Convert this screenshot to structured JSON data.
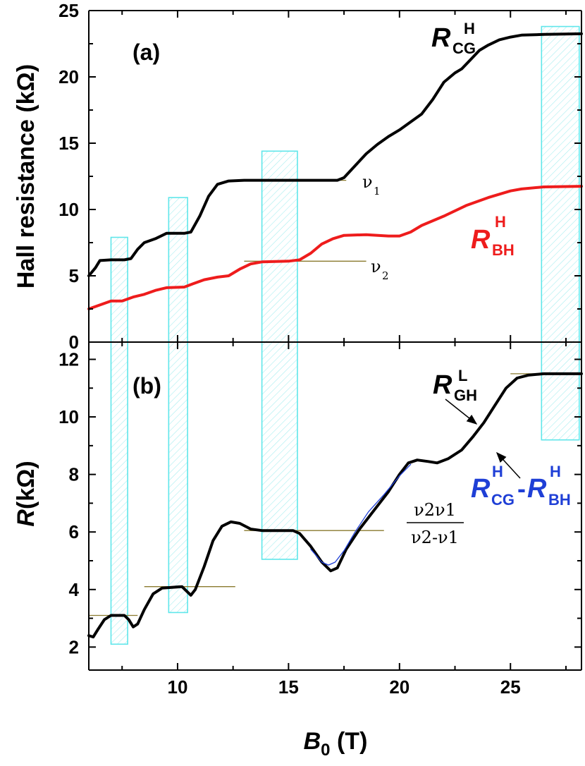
{
  "chart_data": [
    {
      "panel": "(a)",
      "type": "line",
      "ylabel": "Hall resistance (kΩ)",
      "ylim": [
        0,
        25
      ],
      "xlim": [
        6,
        28.2
      ],
      "yticks": [
        0,
        5,
        10,
        15,
        20,
        25
      ],
      "series": [
        {
          "name": "R_CG^H",
          "color": "#000000",
          "points": [
            [
              6.0,
              5.0
            ],
            [
              6.3,
              5.6
            ],
            [
              6.5,
              6.15
            ],
            [
              7.0,
              6.2
            ],
            [
              7.6,
              6.2
            ],
            [
              7.9,
              6.3
            ],
            [
              8.2,
              7.0
            ],
            [
              8.5,
              7.5
            ],
            [
              9.0,
              7.8
            ],
            [
              9.5,
              8.2
            ],
            [
              10.3,
              8.2
            ],
            [
              10.6,
              8.3
            ],
            [
              11.0,
              9.5
            ],
            [
              11.4,
              11.0
            ],
            [
              11.8,
              11.9
            ],
            [
              12.3,
              12.15
            ],
            [
              13.0,
              12.2
            ],
            [
              17.2,
              12.2
            ],
            [
              17.5,
              12.4
            ],
            [
              18.0,
              13.3
            ],
            [
              18.5,
              14.2
            ],
            [
              19.0,
              14.9
            ],
            [
              19.5,
              15.5
            ],
            [
              20.0,
              16.0
            ],
            [
              20.5,
              16.6
            ],
            [
              21.0,
              17.2
            ],
            [
              21.5,
              18.3
            ],
            [
              22.0,
              19.6
            ],
            [
              22.5,
              20.3
            ],
            [
              22.8,
              20.6
            ],
            [
              23.2,
              21.3
            ],
            [
              23.6,
              22.0
            ],
            [
              24.0,
              22.4
            ],
            [
              24.5,
              22.8
            ],
            [
              25.0,
              23.0
            ],
            [
              25.5,
              23.15
            ],
            [
              26.5,
              23.2
            ],
            [
              28.2,
              23.25
            ]
          ]
        },
        {
          "name": "R_BH^H",
          "color": "#ee1c1c",
          "points": [
            [
              6.0,
              2.5
            ],
            [
              6.5,
              2.8
            ],
            [
              7.0,
              3.1
            ],
            [
              7.5,
              3.1
            ],
            [
              8.0,
              3.4
            ],
            [
              8.5,
              3.6
            ],
            [
              9.0,
              3.9
            ],
            [
              9.5,
              4.1
            ],
            [
              10.3,
              4.15
            ],
            [
              10.7,
              4.4
            ],
            [
              11.2,
              4.7
            ],
            [
              11.8,
              4.9
            ],
            [
              12.3,
              5.0
            ],
            [
              12.8,
              5.5
            ],
            [
              13.3,
              5.9
            ],
            [
              13.8,
              6.05
            ],
            [
              15.0,
              6.1
            ],
            [
              15.5,
              6.2
            ],
            [
              16.0,
              6.7
            ],
            [
              16.5,
              7.4
            ],
            [
              17.0,
              7.8
            ],
            [
              17.5,
              8.05
            ],
            [
              18.5,
              8.1
            ],
            [
              19.5,
              8.0
            ],
            [
              20.0,
              8.0
            ],
            [
              20.5,
              8.3
            ],
            [
              21.0,
              8.8
            ],
            [
              22.0,
              9.5
            ],
            [
              23.0,
              10.3
            ],
            [
              24.0,
              10.9
            ],
            [
              25.0,
              11.4
            ],
            [
              25.5,
              11.55
            ],
            [
              26.5,
              11.7
            ],
            [
              28.2,
              11.75
            ]
          ]
        }
      ],
      "labels": [
        {
          "text": "R",
          "sub": "CG",
          "sup": "H",
          "color": "#000000"
        },
        {
          "text": "R",
          "sub": "BH",
          "sup": "H",
          "color": "#ee1c1c"
        },
        {
          "text": "ν",
          "sub": "1"
        },
        {
          "text": "ν",
          "sub": "2"
        }
      ],
      "plateau_lines": [
        {
          "x": [
            13.3,
            17.6
          ],
          "y": 12.2
        },
        {
          "x": [
            13.0,
            18.5
          ],
          "y": 6.1
        }
      ]
    },
    {
      "panel": "(b)",
      "type": "line",
      "ylabel": "R(kΩ)",
      "xlabel": "B0 (T)",
      "ylim": [
        1.2,
        12.6
      ],
      "xlim": [
        6,
        28.2
      ],
      "yticks": [
        2,
        4,
        6,
        8,
        10,
        12
      ],
      "xticks": [
        10,
        15,
        20,
        25
      ],
      "series": [
        {
          "name": "R_GH^L",
          "color": "#000000",
          "points": [
            [
              6.0,
              2.4
            ],
            [
              6.2,
              2.35
            ],
            [
              6.4,
              2.6
            ],
            [
              6.7,
              2.95
            ],
            [
              7.0,
              3.1
            ],
            [
              7.6,
              3.1
            ],
            [
              7.8,
              2.95
            ],
            [
              8.0,
              2.7
            ],
            [
              8.2,
              2.8
            ],
            [
              8.5,
              3.3
            ],
            [
              8.9,
              3.85
            ],
            [
              9.3,
              4.05
            ],
            [
              10.2,
              4.1
            ],
            [
              10.4,
              3.95
            ],
            [
              10.6,
              3.8
            ],
            [
              10.8,
              4.0
            ],
            [
              11.2,
              4.8
            ],
            [
              11.6,
              5.7
            ],
            [
              12.0,
              6.2
            ],
            [
              12.4,
              6.35
            ],
            [
              12.8,
              6.3
            ],
            [
              13.3,
              6.1
            ],
            [
              13.8,
              6.05
            ],
            [
              15.2,
              6.05
            ],
            [
              15.5,
              5.95
            ],
            [
              16.0,
              5.5
            ],
            [
              16.5,
              4.95
            ],
            [
              16.9,
              4.65
            ],
            [
              17.2,
              4.75
            ],
            [
              17.6,
              5.4
            ],
            [
              18.2,
              6.1
            ],
            [
              18.8,
              6.7
            ],
            [
              19.5,
              7.4
            ],
            [
              20.0,
              8.0
            ],
            [
              20.4,
              8.4
            ],
            [
              20.8,
              8.5
            ],
            [
              21.3,
              8.45
            ],
            [
              21.7,
              8.4
            ],
            [
              22.2,
              8.55
            ],
            [
              22.8,
              8.85
            ],
            [
              23.3,
              9.3
            ],
            [
              23.8,
              9.8
            ],
            [
              24.3,
              10.4
            ],
            [
              24.8,
              11.0
            ],
            [
              25.3,
              11.35
            ],
            [
              25.8,
              11.45
            ],
            [
              26.5,
              11.5
            ],
            [
              28.2,
              11.5
            ]
          ]
        },
        {
          "name": "R_CG^H - R_BH^H",
          "color": "#1f3fd6",
          "points": [
            [
              16.0,
              5.4
            ],
            [
              16.5,
              4.95
            ],
            [
              16.8,
              4.85
            ],
            [
              17.1,
              4.95
            ],
            [
              17.5,
              5.35
            ],
            [
              18.0,
              6.0
            ],
            [
              18.6,
              6.7
            ],
            [
              19.3,
              7.3
            ],
            [
              20.0,
              7.95
            ],
            [
              20.5,
              8.35
            ]
          ]
        }
      ],
      "labels": [
        {
          "text": "R",
          "sub": "GH",
          "sup": "L",
          "color": "#000000"
        },
        {
          "text": "R",
          "sub": "CG",
          "sup": "H",
          "color": "#1f3fd6"
        },
        {
          "text": "-",
          "color": "#1f3fd6"
        },
        {
          "text": "R",
          "sub": "BH",
          "sup": "H",
          "color": "#1f3fd6"
        }
      ],
      "formula": {
        "numerator": "ν2ν1",
        "denominator": "ν2-ν1"
      },
      "plateau_lines": [
        {
          "x": [
            6.0,
            8.2
          ],
          "y": 3.1
        },
        {
          "x": [
            8.5,
            12.6
          ],
          "y": 4.1
        },
        {
          "x": [
            13.0,
            19.3
          ],
          "y": 6.05
        },
        {
          "x": [
            25.0,
            28.2
          ],
          "y": 11.5
        }
      ]
    }
  ],
  "hatched_boxes": [
    {
      "x": [
        7.0,
        7.75
      ],
      "y_top_a": 7.9,
      "y_bottom_b": 2.1
    },
    {
      "x": [
        9.6,
        10.45
      ],
      "y_top_a": 10.9,
      "y_bottom_b": 3.2
    },
    {
      "x": [
        13.8,
        15.4
      ],
      "y_top_a": 14.4,
      "y_bottom_b": 5.05
    },
    {
      "x": [
        26.4,
        28.1
      ],
      "y_top_a": 23.8,
      "y_bottom_b": 9.2
    }
  ]
}
